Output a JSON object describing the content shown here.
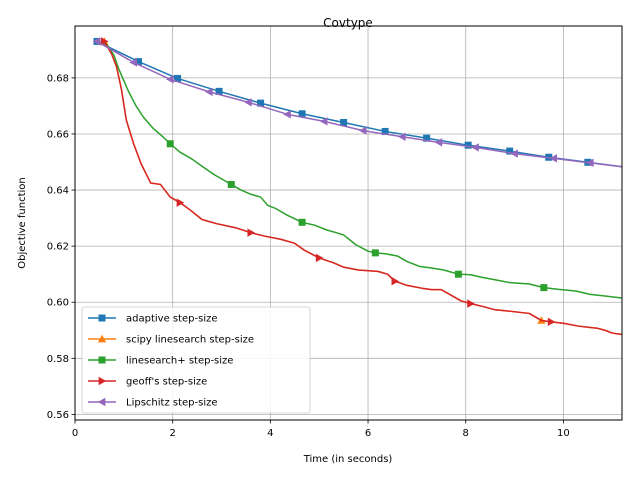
{
  "chart_data": {
    "type": "line",
    "title": "Covtype",
    "xlabel": "Time (in seconds)",
    "ylabel": "Objective function",
    "xlim": [
      0,
      11.2
    ],
    "ylim": [
      0.558,
      0.6985
    ],
    "xticks": [
      0,
      2,
      4,
      6,
      8,
      10
    ],
    "xtick_labels": [
      "0",
      "2",
      "4",
      "6",
      "8",
      "10"
    ],
    "yticks": [
      0.56,
      0.58,
      0.6,
      0.62,
      0.64,
      0.66,
      0.68
    ],
    "ytick_labels": [
      "0.56",
      "0.58",
      "0.60",
      "0.62",
      "0.64",
      "0.66",
      "0.68"
    ],
    "grid": true,
    "legend_position": "lower-left",
    "series": [
      {
        "name": "adaptive step-size",
        "color": "#1f77b4",
        "marker": "square",
        "x": [
          0.45,
          1.3,
          2.1,
          2.95,
          3.8,
          4.65,
          5.5,
          6.35,
          7.2,
          8.05,
          8.9,
          9.7,
          10.5,
          11.2
        ],
        "y": [
          0.693,
          0.6858,
          0.6798,
          0.6752,
          0.671,
          0.6672,
          0.6641,
          0.6609,
          0.6585,
          0.656,
          0.6539,
          0.6517,
          0.6499,
          0.6483
        ],
        "markers_x": [
          0.45,
          1.3,
          2.1,
          2.95,
          3.8,
          4.65,
          5.5,
          6.35,
          7.2,
          8.05,
          8.9,
          9.7,
          10.5
        ],
        "markers_y": [
          0.693,
          0.6858,
          0.6798,
          0.6752,
          0.671,
          0.6672,
          0.6641,
          0.6609,
          0.6585,
          0.656,
          0.6539,
          0.6517,
          0.6499
        ]
      },
      {
        "name": "scipy linesearch step-size",
        "color": "#ff7f0e",
        "marker": "triangle-up",
        "x": [
          0.6,
          0.75,
          0.85,
          0.95,
          1.05,
          1.2,
          1.35,
          1.55,
          1.75,
          1.95,
          2.15,
          2.35,
          2.6,
          2.9,
          3.3,
          3.6,
          3.9,
          4.2,
          4.5,
          4.7,
          5.0,
          5.3,
          5.5,
          5.8,
          6.2,
          6.4,
          6.55,
          6.8,
          7.1,
          7.3,
          7.5,
          7.7,
          7.9,
          8.1,
          8.35,
          8.6,
          8.9,
          9.3,
          9.55,
          9.75,
          10.0,
          10.3,
          10.55,
          10.7,
          10.85,
          11.0,
          11.2
        ],
        "y": [
          0.693,
          0.6885,
          0.684,
          0.676,
          0.665,
          0.6565,
          0.6495,
          0.6425,
          0.642,
          0.6375,
          0.6355,
          0.633,
          0.6295,
          0.628,
          0.6265,
          0.6248,
          0.6235,
          0.6225,
          0.621,
          0.6185,
          0.6158,
          0.614,
          0.6125,
          0.6115,
          0.611,
          0.61,
          0.6075,
          0.606,
          0.605,
          0.6045,
          0.6045,
          0.6025,
          0.6005,
          0.5995,
          0.5985,
          0.5973,
          0.5968,
          0.596,
          0.5935,
          0.593,
          0.5925,
          0.5915,
          0.591,
          0.5907,
          0.59,
          0.589,
          0.5885
        ],
        "markers_x": [
          0.6,
          9.55
        ],
        "markers_y": [
          0.693,
          0.5935
        ]
      },
      {
        "name": "linesearch+ step-size",
        "color": "#2ca02c",
        "marker": "square",
        "x": [
          0.45,
          0.65,
          0.8,
          0.9,
          1.0,
          1.1,
          1.25,
          1.4,
          1.6,
          1.8,
          1.95,
          2.15,
          2.4,
          2.6,
          2.85,
          3.05,
          3.2,
          3.4,
          3.6,
          3.8,
          3.95,
          4.1,
          4.35,
          4.65,
          4.9,
          5.15,
          5.35,
          5.5,
          5.75,
          6.0,
          6.15,
          6.35,
          6.6,
          6.8,
          7.05,
          7.3,
          7.55,
          7.85,
          8.1,
          8.35,
          8.6,
          8.9,
          9.3,
          9.6,
          9.9,
          10.25,
          10.55,
          10.85,
          11.2
        ],
        "y": [
          0.693,
          0.692,
          0.688,
          0.683,
          0.679,
          0.675,
          0.67,
          0.666,
          0.662,
          0.659,
          0.6565,
          0.6535,
          0.651,
          0.6485,
          0.6455,
          0.6435,
          0.642,
          0.64,
          0.6385,
          0.6375,
          0.6345,
          0.6335,
          0.631,
          0.6285,
          0.6275,
          0.6258,
          0.6248,
          0.624,
          0.6205,
          0.6182,
          0.6176,
          0.6173,
          0.6165,
          0.6145,
          0.6128,
          0.6122,
          0.6115,
          0.61,
          0.6098,
          0.6088,
          0.608,
          0.607,
          0.6065,
          0.6052,
          0.6046,
          0.604,
          0.6028,
          0.6022,
          0.6015
        ],
        "markers_x": [
          1.95,
          3.2,
          4.65,
          6.15,
          7.85,
          9.6
        ],
        "markers_y": [
          0.6565,
          0.642,
          0.6285,
          0.6176,
          0.61,
          0.6052
        ]
      },
      {
        "name": "geoff's step-size",
        "color": "#d62728",
        "marker": "triangle-right",
        "x": [
          0.6,
          0.75,
          0.85,
          0.95,
          1.05,
          1.2,
          1.35,
          1.55,
          1.75,
          1.95,
          2.15,
          2.35,
          2.6,
          2.9,
          3.3,
          3.6,
          3.9,
          4.2,
          4.5,
          4.7,
          5.0,
          5.3,
          5.5,
          5.8,
          6.2,
          6.4,
          6.55,
          6.8,
          7.1,
          7.3,
          7.5,
          7.7,
          7.9,
          8.1,
          8.35,
          8.6,
          8.9,
          9.3,
          9.55,
          9.75,
          10.0,
          10.3,
          10.55,
          10.7,
          10.85,
          11.0,
          11.2
        ],
        "y": [
          0.693,
          0.6885,
          0.684,
          0.676,
          0.665,
          0.6565,
          0.6495,
          0.6425,
          0.642,
          0.6375,
          0.6355,
          0.633,
          0.6295,
          0.628,
          0.6265,
          0.6248,
          0.6235,
          0.6225,
          0.621,
          0.6185,
          0.6158,
          0.614,
          0.6125,
          0.6115,
          0.611,
          0.61,
          0.6075,
          0.606,
          0.605,
          0.6045,
          0.6045,
          0.6025,
          0.6005,
          0.5995,
          0.5985,
          0.5973,
          0.5968,
          0.596,
          0.5935,
          0.593,
          0.5925,
          0.5915,
          0.591,
          0.5907,
          0.59,
          0.589,
          0.5885
        ],
        "markers_x": [
          0.6,
          2.15,
          3.6,
          5.0,
          6.55,
          8.1,
          9.75
        ],
        "markers_y": [
          0.693,
          0.6355,
          0.6248,
          0.6158,
          0.6075,
          0.5995,
          0.593
        ]
      },
      {
        "name": "Lipschitz step-size",
        "color": "#9467bd",
        "marker": "triangle-left",
        "x": [
          0.45,
          1.2,
          1.95,
          2.75,
          3.55,
          4.35,
          5.1,
          5.9,
          6.7,
          7.45,
          8.2,
          9.0,
          9.8,
          10.55,
          11.2
        ],
        "y": [
          0.693,
          0.6855,
          0.6795,
          0.675,
          0.6713,
          0.667,
          0.6645,
          0.6612,
          0.659,
          0.657,
          0.6552,
          0.653,
          0.6513,
          0.6497,
          0.6483
        ],
        "markers_x": [
          0.45,
          1.2,
          1.95,
          2.75,
          3.55,
          4.35,
          5.1,
          5.9,
          6.7,
          7.45,
          8.2,
          9.0,
          9.8,
          10.55
        ],
        "markers_y": [
          0.693,
          0.6855,
          0.6795,
          0.675,
          0.6713,
          0.667,
          0.6645,
          0.6612,
          0.659,
          0.657,
          0.6552,
          0.653,
          0.6513,
          0.6497
        ]
      }
    ]
  }
}
